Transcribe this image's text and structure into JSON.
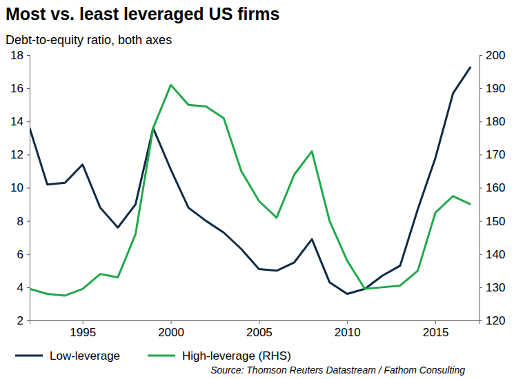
{
  "chart_data": {
    "type": "line",
    "title": "Most vs. least leveraged US firms",
    "subtitle": "Debt-to-equity ratio, both axes",
    "source": "Source: Thomson Reuters Datastream / Fathom Consulting",
    "x": [
      1992,
      1993,
      1994,
      1995,
      1996,
      1997,
      1998,
      1999,
      2000,
      2001,
      2002,
      2003,
      2004,
      2005,
      2006,
      2007,
      2008,
      2009,
      2010,
      2011,
      2012,
      2013,
      2014,
      2015,
      2016,
      2017
    ],
    "xlim": [
      1992,
      2017.5
    ],
    "xticks": [
      1995,
      2000,
      2005,
      2010,
      2015
    ],
    "ylim": [
      2,
      18
    ],
    "yticks": [
      2,
      4,
      6,
      8,
      10,
      12,
      14,
      16,
      18
    ],
    "y2lim": [
      120,
      200
    ],
    "y2ticks": [
      120,
      130,
      140,
      150,
      160,
      170,
      180,
      190,
      200
    ],
    "legend": "bottom",
    "grid": false,
    "series": [
      {
        "name": "Low-leverage",
        "color": "#0d2b45",
        "values": [
          13.6,
          10.2,
          10.3,
          11.4,
          8.8,
          7.6,
          9.0,
          13.6,
          11.1,
          8.8,
          8.0,
          7.3,
          6.3,
          5.1,
          5.0,
          5.5,
          6.9,
          4.3,
          3.6,
          3.9,
          4.7,
          5.3,
          8.7,
          11.8,
          15.7,
          17.3
        ]
      },
      {
        "name": "High-leverage (RHS)",
        "color": "#21a84a",
        "axis": "y2",
        "values": [
          129.5,
          128,
          127.5,
          129.5,
          134,
          133,
          146,
          178,
          191,
          185,
          184.5,
          181,
          165,
          156,
          151,
          164,
          171,
          150,
          138,
          129.5,
          130,
          130.5,
          135,
          152.5,
          157.5,
          155
        ]
      }
    ]
  }
}
